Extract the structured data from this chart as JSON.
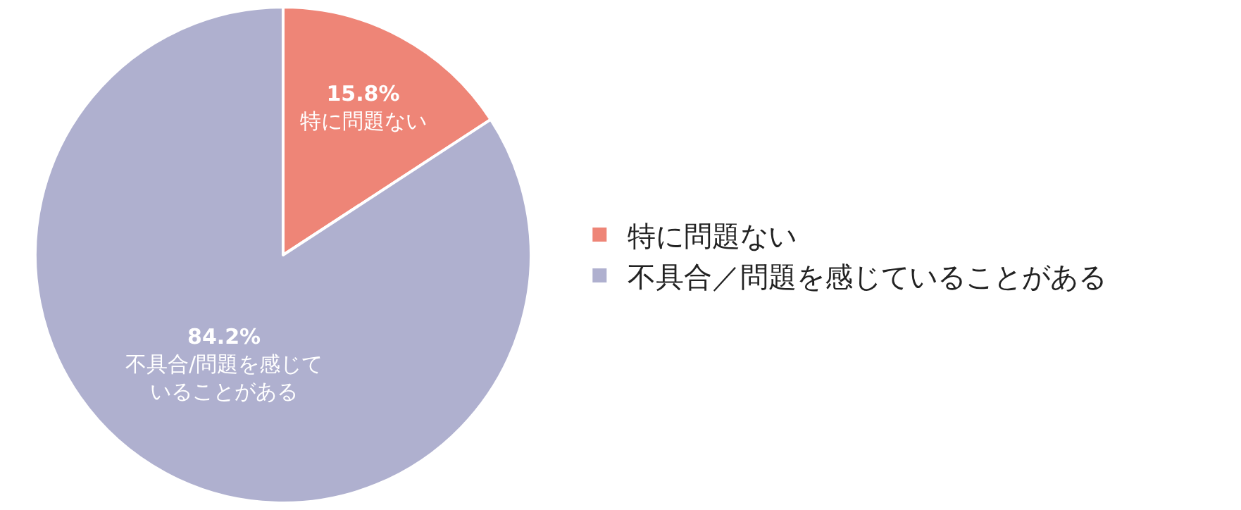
{
  "chart_data": {
    "type": "pie",
    "categories": [
      "特に問題ない",
      "不具合／問題を感じていることがある"
    ],
    "values": [
      15.8,
      84.2
    ],
    "colors": [
      "#ee8577",
      "#afb0cf"
    ],
    "value_labels": [
      "15.8%",
      "84.2%"
    ],
    "annotations": [
      "特に問題ない",
      "不具合/問題を感じていることがある"
    ],
    "legend": "right"
  }
}
